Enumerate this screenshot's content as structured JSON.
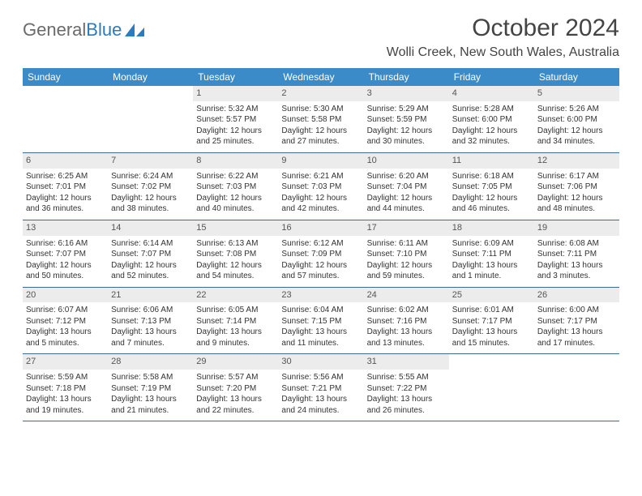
{
  "logo": {
    "text_gray": "General",
    "text_blue": "Blue"
  },
  "header": {
    "month_title": "October 2024",
    "location": "Wolli Creek, New South Wales, Australia"
  },
  "colors": {
    "header_bg": "#3b8bc9",
    "header_text": "#ffffff",
    "daynum_bg": "#ececec",
    "rule": "#3b6a94",
    "text": "#333333"
  },
  "weekdays": [
    "Sunday",
    "Monday",
    "Tuesday",
    "Wednesday",
    "Thursday",
    "Friday",
    "Saturday"
  ],
  "weeks": [
    [
      null,
      null,
      {
        "n": "1",
        "sr": "Sunrise: 5:32 AM",
        "ss": "Sunset: 5:57 PM",
        "d1": "Daylight: 12 hours",
        "d2": "and 25 minutes."
      },
      {
        "n": "2",
        "sr": "Sunrise: 5:30 AM",
        "ss": "Sunset: 5:58 PM",
        "d1": "Daylight: 12 hours",
        "d2": "and 27 minutes."
      },
      {
        "n": "3",
        "sr": "Sunrise: 5:29 AM",
        "ss": "Sunset: 5:59 PM",
        "d1": "Daylight: 12 hours",
        "d2": "and 30 minutes."
      },
      {
        "n": "4",
        "sr": "Sunrise: 5:28 AM",
        "ss": "Sunset: 6:00 PM",
        "d1": "Daylight: 12 hours",
        "d2": "and 32 minutes."
      },
      {
        "n": "5",
        "sr": "Sunrise: 5:26 AM",
        "ss": "Sunset: 6:00 PM",
        "d1": "Daylight: 12 hours",
        "d2": "and 34 minutes."
      }
    ],
    [
      {
        "n": "6",
        "sr": "Sunrise: 6:25 AM",
        "ss": "Sunset: 7:01 PM",
        "d1": "Daylight: 12 hours",
        "d2": "and 36 minutes."
      },
      {
        "n": "7",
        "sr": "Sunrise: 6:24 AM",
        "ss": "Sunset: 7:02 PM",
        "d1": "Daylight: 12 hours",
        "d2": "and 38 minutes."
      },
      {
        "n": "8",
        "sr": "Sunrise: 6:22 AM",
        "ss": "Sunset: 7:03 PM",
        "d1": "Daylight: 12 hours",
        "d2": "and 40 minutes."
      },
      {
        "n": "9",
        "sr": "Sunrise: 6:21 AM",
        "ss": "Sunset: 7:03 PM",
        "d1": "Daylight: 12 hours",
        "d2": "and 42 minutes."
      },
      {
        "n": "10",
        "sr": "Sunrise: 6:20 AM",
        "ss": "Sunset: 7:04 PM",
        "d1": "Daylight: 12 hours",
        "d2": "and 44 minutes."
      },
      {
        "n": "11",
        "sr": "Sunrise: 6:18 AM",
        "ss": "Sunset: 7:05 PM",
        "d1": "Daylight: 12 hours",
        "d2": "and 46 minutes."
      },
      {
        "n": "12",
        "sr": "Sunrise: 6:17 AM",
        "ss": "Sunset: 7:06 PM",
        "d1": "Daylight: 12 hours",
        "d2": "and 48 minutes."
      }
    ],
    [
      {
        "n": "13",
        "sr": "Sunrise: 6:16 AM",
        "ss": "Sunset: 7:07 PM",
        "d1": "Daylight: 12 hours",
        "d2": "and 50 minutes."
      },
      {
        "n": "14",
        "sr": "Sunrise: 6:14 AM",
        "ss": "Sunset: 7:07 PM",
        "d1": "Daylight: 12 hours",
        "d2": "and 52 minutes."
      },
      {
        "n": "15",
        "sr": "Sunrise: 6:13 AM",
        "ss": "Sunset: 7:08 PM",
        "d1": "Daylight: 12 hours",
        "d2": "and 54 minutes."
      },
      {
        "n": "16",
        "sr": "Sunrise: 6:12 AM",
        "ss": "Sunset: 7:09 PM",
        "d1": "Daylight: 12 hours",
        "d2": "and 57 minutes."
      },
      {
        "n": "17",
        "sr": "Sunrise: 6:11 AM",
        "ss": "Sunset: 7:10 PM",
        "d1": "Daylight: 12 hours",
        "d2": "and 59 minutes."
      },
      {
        "n": "18",
        "sr": "Sunrise: 6:09 AM",
        "ss": "Sunset: 7:11 PM",
        "d1": "Daylight: 13 hours",
        "d2": "and 1 minute."
      },
      {
        "n": "19",
        "sr": "Sunrise: 6:08 AM",
        "ss": "Sunset: 7:11 PM",
        "d1": "Daylight: 13 hours",
        "d2": "and 3 minutes."
      }
    ],
    [
      {
        "n": "20",
        "sr": "Sunrise: 6:07 AM",
        "ss": "Sunset: 7:12 PM",
        "d1": "Daylight: 13 hours",
        "d2": "and 5 minutes."
      },
      {
        "n": "21",
        "sr": "Sunrise: 6:06 AM",
        "ss": "Sunset: 7:13 PM",
        "d1": "Daylight: 13 hours",
        "d2": "and 7 minutes."
      },
      {
        "n": "22",
        "sr": "Sunrise: 6:05 AM",
        "ss": "Sunset: 7:14 PM",
        "d1": "Daylight: 13 hours",
        "d2": "and 9 minutes."
      },
      {
        "n": "23",
        "sr": "Sunrise: 6:04 AM",
        "ss": "Sunset: 7:15 PM",
        "d1": "Daylight: 13 hours",
        "d2": "and 11 minutes."
      },
      {
        "n": "24",
        "sr": "Sunrise: 6:02 AM",
        "ss": "Sunset: 7:16 PM",
        "d1": "Daylight: 13 hours",
        "d2": "and 13 minutes."
      },
      {
        "n": "25",
        "sr": "Sunrise: 6:01 AM",
        "ss": "Sunset: 7:17 PM",
        "d1": "Daylight: 13 hours",
        "d2": "and 15 minutes."
      },
      {
        "n": "26",
        "sr": "Sunrise: 6:00 AM",
        "ss": "Sunset: 7:17 PM",
        "d1": "Daylight: 13 hours",
        "d2": "and 17 minutes."
      }
    ],
    [
      {
        "n": "27",
        "sr": "Sunrise: 5:59 AM",
        "ss": "Sunset: 7:18 PM",
        "d1": "Daylight: 13 hours",
        "d2": "and 19 minutes."
      },
      {
        "n": "28",
        "sr": "Sunrise: 5:58 AM",
        "ss": "Sunset: 7:19 PM",
        "d1": "Daylight: 13 hours",
        "d2": "and 21 minutes."
      },
      {
        "n": "29",
        "sr": "Sunrise: 5:57 AM",
        "ss": "Sunset: 7:20 PM",
        "d1": "Daylight: 13 hours",
        "d2": "and 22 minutes."
      },
      {
        "n": "30",
        "sr": "Sunrise: 5:56 AM",
        "ss": "Sunset: 7:21 PM",
        "d1": "Daylight: 13 hours",
        "d2": "and 24 minutes."
      },
      {
        "n": "31",
        "sr": "Sunrise: 5:55 AM",
        "ss": "Sunset: 7:22 PM",
        "d1": "Daylight: 13 hours",
        "d2": "and 26 minutes."
      },
      null,
      null
    ]
  ]
}
